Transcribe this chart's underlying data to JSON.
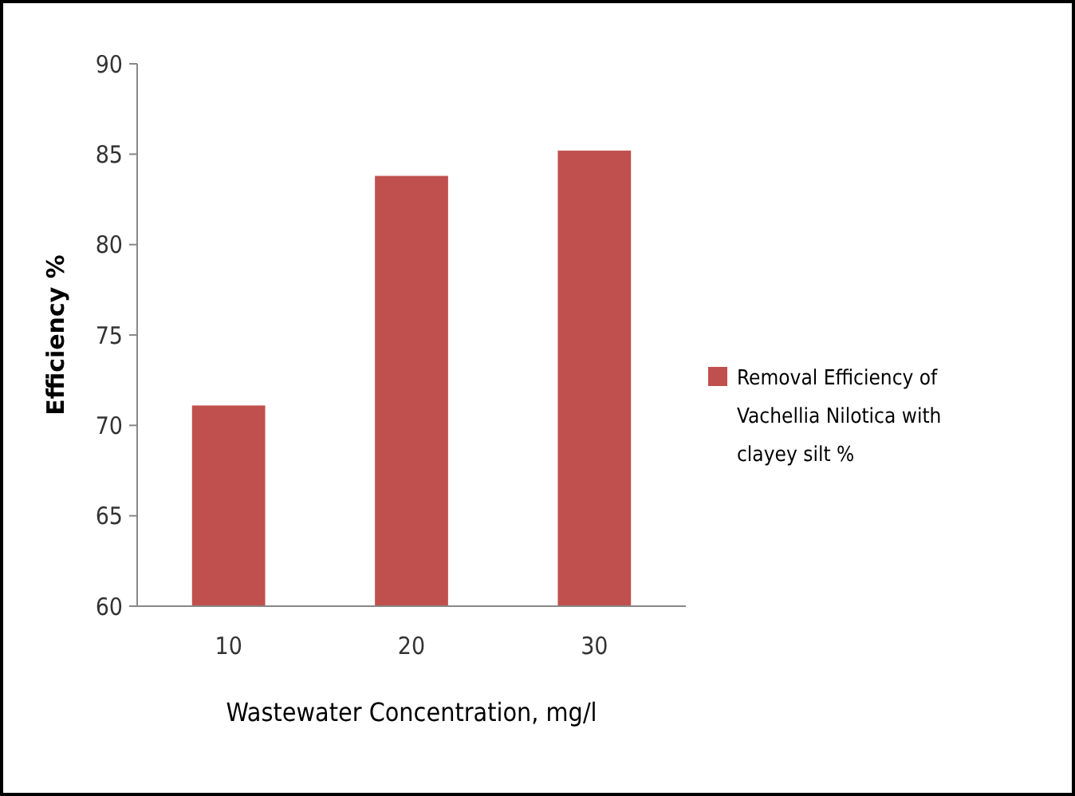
{
  "chart_data": {
    "type": "bar",
    "xlabel": "Wastewater Concentration, mg/l",
    "ylabel": "Efficiency %",
    "categories": [
      "10",
      "20",
      "30"
    ],
    "series": [
      {
        "name": "Removal Efficiency of Vachellia Nilotica with clayey silt %",
        "color": "#c0504d",
        "values": [
          71.1,
          83.8,
          85.2
        ]
      }
    ],
    "ylim": [
      60,
      90
    ],
    "yticks": [
      60,
      65,
      70,
      75,
      80,
      85,
      90
    ],
    "grid": false,
    "legend": "right"
  }
}
